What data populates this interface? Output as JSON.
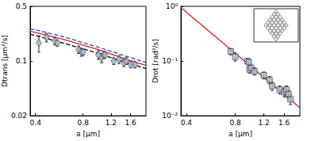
{
  "chart_data": [
    {
      "type": "scatter",
      "xlabel": "a [µm]",
      "ylabel": "Dtrans [µm²/s]",
      "log": true,
      "grid": false,
      "xlim": [
        0.37,
        2.0
      ],
      "ylim": [
        0.02,
        0.5
      ],
      "xticks": [
        0.4,
        0.8,
        1.2,
        1.6
      ],
      "yticks": [
        0.02,
        0.1,
        0.5
      ],
      "series": [
        {
          "type": "scatter",
          "marker": "diamond",
          "color": "#a9bfd6",
          "x": [
            0.42,
            0.47,
            0.53,
            0.55,
            0.75,
            0.78,
            0.8,
            1.0,
            1.05,
            1.08,
            1.1,
            1.25,
            1.35,
            1.45,
            1.5,
            1.6,
            1.7
          ],
          "values": [
            0.17,
            0.2,
            0.18,
            0.17,
            0.14,
            0.13,
            0.13,
            0.12,
            0.11,
            0.12,
            0.12,
            0.1,
            0.105,
            0.095,
            0.1,
            0.09,
            0.09
          ],
          "yerr": [
            0.04,
            0.025,
            0.02,
            0.015,
            0.015,
            0.015,
            0.012,
            0.015,
            0.015,
            0.012,
            0.012,
            0.01,
            0.012,
            0.01,
            0.01,
            0.008,
            0.008
          ]
        },
        {
          "type": "line",
          "line_style": "dashed",
          "color": "#2a4bd7",
          "x": [
            0.37,
            0.6,
            1.0,
            1.5,
            2.0
          ],
          "values": [
            0.26,
            0.205,
            0.15,
            0.115,
            0.096
          ]
        },
        {
          "type": "line",
          "line_style": "solid",
          "color": "#e41a1c",
          "x": [
            0.37,
            0.6,
            1.0,
            1.5,
            2.0
          ],
          "values": [
            0.24,
            0.19,
            0.14,
            0.105,
            0.088
          ]
        },
        {
          "type": "line",
          "line_style": "dashed",
          "color": "#000000",
          "x": [
            0.37,
            0.6,
            1.0,
            1.5,
            2.0
          ],
          "values": [
            0.22,
            0.17,
            0.125,
            0.095,
            0.08
          ]
        }
      ]
    },
    {
      "type": "scatter",
      "xlabel": "a [µm]",
      "ylabel": "Drot [rad²/s]",
      "log": true,
      "grid": false,
      "xlim": [
        0.37,
        2.0
      ],
      "ylim": [
        0.01,
        1
      ],
      "xticks": [
        0.4,
        0.8,
        1.2,
        1.6
      ],
      "yticks": [
        {
          "value": 0.01,
          "label": "10⁻²"
        },
        {
          "value": 0.1,
          "label": "10⁻¹"
        },
        {
          "value": 1,
          "label": "10⁰"
        }
      ],
      "series": [
        {
          "type": "line",
          "line_style": "solid",
          "color": "#e41a1c",
          "x": [
            0.37,
            2.0
          ],
          "values": [
            0.95,
            0.014
          ]
        },
        {
          "type": "scatter",
          "marker": "square",
          "color": "#a9bfd6",
          "x": [
            0.75,
            0.8,
            0.95,
            0.97,
            0.98,
            1.0,
            1.05,
            1.2,
            1.3,
            1.35,
            1.5,
            1.6,
            1.65,
            1.7,
            1.75
          ],
          "values": [
            0.15,
            0.12,
            0.1,
            0.095,
            0.07,
            0.075,
            0.065,
            0.055,
            0.045,
            0.035,
            0.03,
            0.027,
            0.03,
            0.025,
            0.02
          ],
          "yerr": [
            0.02,
            0.02,
            0.012,
            0.012,
            0.01,
            0.01,
            0.01,
            0.008,
            0.007,
            0.006,
            0.005,
            0.005,
            0.005,
            0.004,
            0.004
          ]
        }
      ]
    }
  ]
}
